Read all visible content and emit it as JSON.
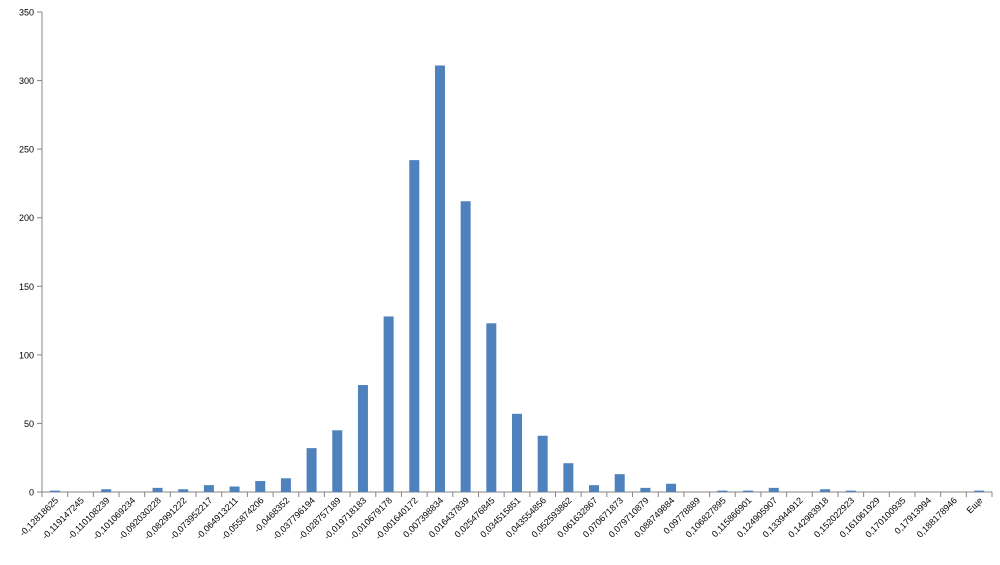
{
  "chart_data": {
    "type": "bar",
    "title": "",
    "xlabel": "",
    "ylabel": "",
    "ylim": [
      0,
      350
    ],
    "yticks": [
      "0",
      "50",
      "100",
      "150",
      "200",
      "250",
      "300",
      "350"
    ],
    "grid": false,
    "legend": "none",
    "bar_color": "#4f81bd",
    "categories": [
      "-0,12818625",
      "-0,119147245",
      "-0,110108239",
      "-0,101069234",
      "-0,092030228",
      "-0,082991222",
      "-0,073952217",
      "-0,064913211",
      "-0,055874206",
      "-0,0468352",
      "-0,037796194",
      "-0,028757189",
      "-0,019718183",
      "-0,010679178",
      "-0,001640172",
      "0,007398834",
      "0,016437839",
      "0,025476845",
      "0,034515851",
      "0,043554856",
      "0,052593862",
      "0,061632867",
      "0,070671873",
      "0,079710879",
      "0,088749884",
      "0,09778889",
      "0,106827895",
      "0,115866901",
      "0,124905907",
      "0,133944912",
      "0,142983918",
      "0,152022923",
      "0,161061929",
      "0,170100935",
      "0,17913994",
      "0,188178946",
      "Еще"
    ],
    "values": [
      1,
      0,
      2,
      0,
      3,
      2,
      5,
      4,
      8,
      10,
      32,
      45,
      78,
      128,
      242,
      311,
      212,
      123,
      57,
      41,
      21,
      5,
      13,
      3,
      6,
      0,
      1,
      1,
      3,
      0,
      2,
      1,
      0,
      0,
      0,
      0,
      1
    ]
  }
}
